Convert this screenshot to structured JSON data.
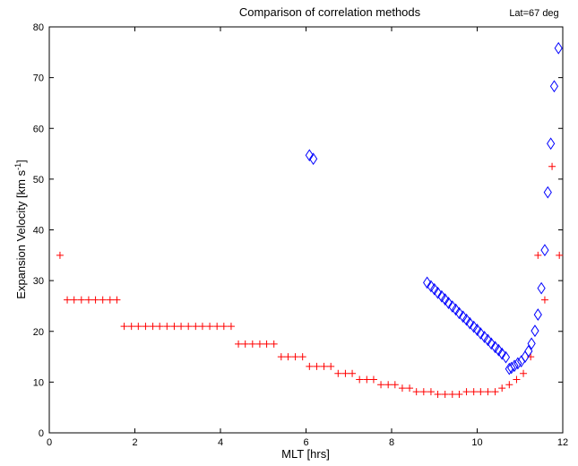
{
  "chart_data": {
    "type": "scatter",
    "title": "Comparison of correlation methods",
    "annotation": "Lat=67 deg",
    "xlabel": "MLT [hrs]",
    "ylabel": "Expansion Velocity [km s",
    "ylabel_sup": "-1",
    "ylabel_end": "]",
    "xlim": [
      0,
      12
    ],
    "ylim": [
      0,
      80
    ],
    "xticks": [
      0,
      2,
      4,
      6,
      8,
      10,
      12
    ],
    "yticks": [
      0,
      10,
      20,
      30,
      40,
      50,
      60,
      70,
      80
    ],
    "grid": false,
    "series": [
      {
        "marker": "plus",
        "color": "#ff0000",
        "points": [
          [
            0.25,
            35
          ],
          [
            0.42,
            26.2
          ],
          [
            0.58,
            26.2
          ],
          [
            0.75,
            26.2
          ],
          [
            0.92,
            26.2
          ],
          [
            1.08,
            26.2
          ],
          [
            1.25,
            26.2
          ],
          [
            1.42,
            26.2
          ],
          [
            1.58,
            26.2
          ],
          [
            1.75,
            21
          ],
          [
            1.92,
            21
          ],
          [
            2.08,
            21
          ],
          [
            2.25,
            21
          ],
          [
            2.42,
            21
          ],
          [
            2.58,
            21
          ],
          [
            2.75,
            21
          ],
          [
            2.92,
            21
          ],
          [
            3.08,
            21
          ],
          [
            3.25,
            21
          ],
          [
            3.42,
            21
          ],
          [
            3.58,
            21
          ],
          [
            3.75,
            21
          ],
          [
            3.92,
            21
          ],
          [
            4.08,
            21
          ],
          [
            4.25,
            21
          ],
          [
            4.42,
            17.5
          ],
          [
            4.58,
            17.5
          ],
          [
            4.75,
            17.5
          ],
          [
            4.92,
            17.5
          ],
          [
            5.08,
            17.5
          ],
          [
            5.25,
            17.5
          ],
          [
            5.42,
            15
          ],
          [
            5.58,
            15
          ],
          [
            5.75,
            15
          ],
          [
            5.92,
            15
          ],
          [
            6.08,
            13.1
          ],
          [
            6.25,
            13.1
          ],
          [
            6.42,
            13.1
          ],
          [
            6.58,
            13.1
          ],
          [
            6.75,
            11.7
          ],
          [
            6.92,
            11.7
          ],
          [
            7.08,
            11.7
          ],
          [
            7.25,
            10.5
          ],
          [
            7.42,
            10.5
          ],
          [
            7.58,
            10.5
          ],
          [
            7.75,
            9.5
          ],
          [
            7.92,
            9.5
          ],
          [
            8.08,
            9.5
          ],
          [
            8.25,
            8.8
          ],
          [
            8.42,
            8.8
          ],
          [
            8.58,
            8.1
          ],
          [
            8.75,
            8.1
          ],
          [
            8.92,
            8.1
          ],
          [
            9.08,
            7.6
          ],
          [
            9.25,
            7.6
          ],
          [
            9.42,
            7.6
          ],
          [
            9.58,
            7.6
          ],
          [
            9.75,
            8.1
          ],
          [
            9.92,
            8.1
          ],
          [
            10.08,
            8.1
          ],
          [
            10.25,
            8.1
          ],
          [
            10.42,
            8.1
          ],
          [
            10.58,
            8.8
          ],
          [
            10.75,
            9.5
          ],
          [
            10.92,
            10.5
          ],
          [
            11.08,
            11.7
          ],
          [
            11.25,
            15
          ],
          [
            11.42,
            35
          ],
          [
            11.58,
            26.2
          ],
          [
            11.75,
            52.5
          ],
          [
            11.92,
            35
          ]
        ]
      },
      {
        "marker": "diamond",
        "color": "#0000ff",
        "points": [
          [
            6.08,
            54.7
          ],
          [
            6.17,
            54
          ],
          [
            8.83,
            29.6
          ],
          [
            8.92,
            28.9
          ],
          [
            9.0,
            28.3
          ],
          [
            9.08,
            27.6
          ],
          [
            9.17,
            26.9
          ],
          [
            9.25,
            26.3
          ],
          [
            9.33,
            25.6
          ],
          [
            9.42,
            24.9
          ],
          [
            9.5,
            24.3
          ],
          [
            9.58,
            23.6
          ],
          [
            9.67,
            22.9
          ],
          [
            9.75,
            22.3
          ],
          [
            9.83,
            21.6
          ],
          [
            9.92,
            20.9
          ],
          [
            10.0,
            20.3
          ],
          [
            10.08,
            19.6
          ],
          [
            10.17,
            18.9
          ],
          [
            10.25,
            18.3
          ],
          [
            10.33,
            17.6
          ],
          [
            10.42,
            16.9
          ],
          [
            10.5,
            16.3
          ],
          [
            10.58,
            15.6
          ],
          [
            10.67,
            14.9
          ],
          [
            10.75,
            12.6
          ],
          [
            10.8,
            12.8
          ],
          [
            10.87,
            13.2
          ],
          [
            10.95,
            13.7
          ],
          [
            11.03,
            14.1
          ],
          [
            11.12,
            15.0
          ],
          [
            11.2,
            16.1
          ],
          [
            11.27,
            17.6
          ],
          [
            11.35,
            20.1
          ],
          [
            11.42,
            23.3
          ],
          [
            11.5,
            28.5
          ],
          [
            11.58,
            36
          ],
          [
            11.65,
            47.4
          ],
          [
            11.72,
            57
          ],
          [
            11.8,
            68.3
          ],
          [
            11.9,
            75.8
          ]
        ]
      }
    ]
  }
}
